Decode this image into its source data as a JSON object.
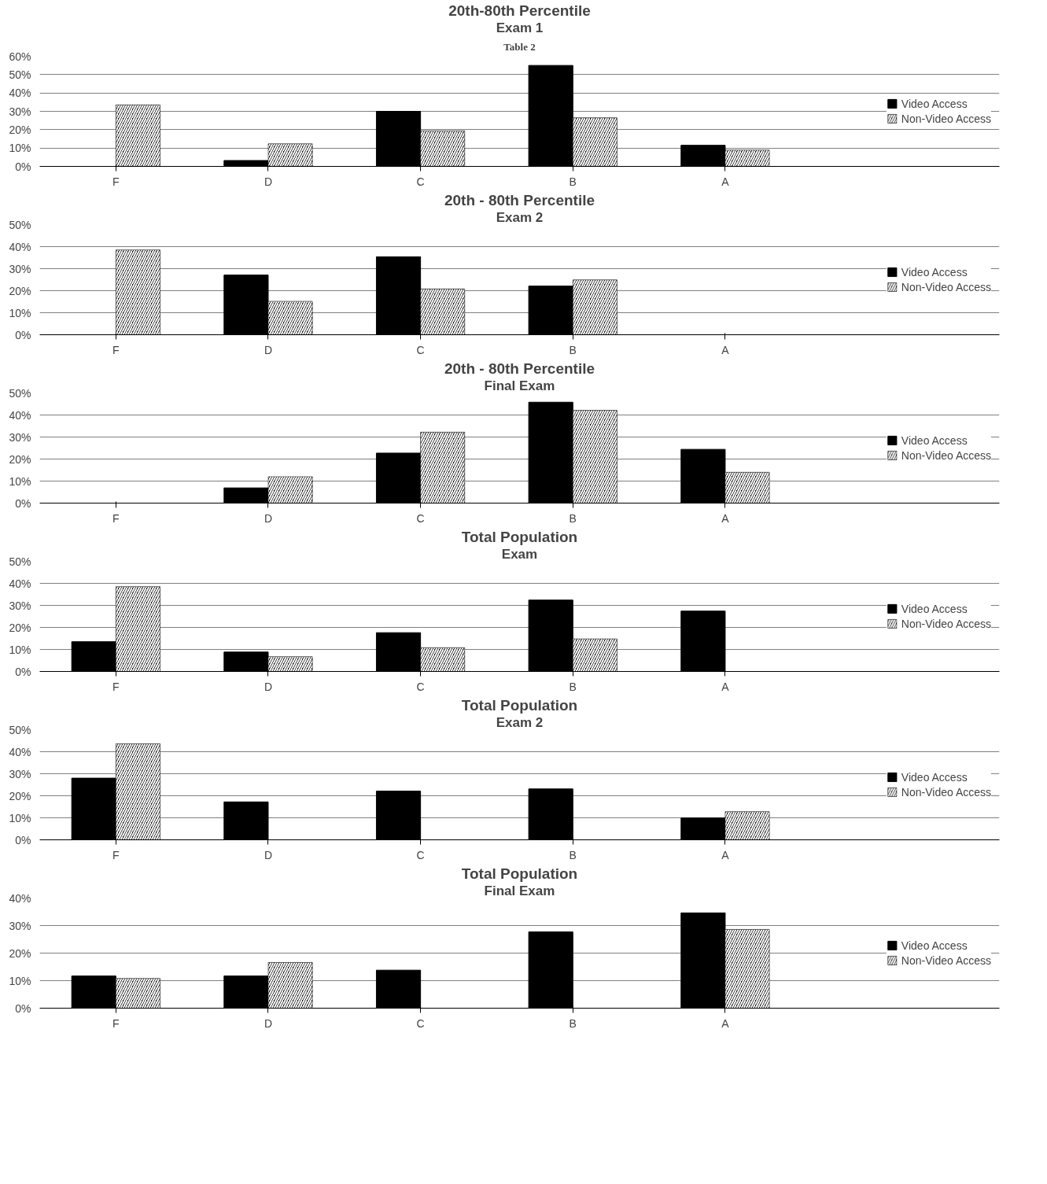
{
  "chart_data": [
    {
      "type": "bar",
      "title": "20th-80th Percentile",
      "subtitle": "Exam 1",
      "annotations": [
        "Table 2"
      ],
      "categories": [
        "F",
        "D",
        "C",
        "B",
        "A"
      ],
      "ylim": [
        0,
        60
      ],
      "yticks": [
        {
          "value": 0,
          "label": "0%"
        },
        {
          "value": 10,
          "label": "10%"
        },
        {
          "value": 20,
          "label": "20%"
        },
        {
          "value": 30,
          "label": "30%"
        },
        {
          "value": 40,
          "label": "40%"
        },
        {
          "value": 50,
          "label": "50%"
        },
        {
          "value": 60,
          "label": "60%"
        }
      ],
      "grid": "y",
      "legend": "right",
      "series": [
        {
          "name": "Video Access",
          "color": "#000000",
          "values": [
            0,
            3.2,
            30,
            55,
            11.5
          ]
        },
        {
          "name": "Non-Video Access",
          "color": "#000000",
          "values": [
            33.5,
            12.3,
            19.4,
            26.5,
            8.9
          ]
        }
      ]
    },
    {
      "type": "bar",
      "title": "20th - 80th Percentile",
      "subtitle": "Exam 2",
      "categories": [
        "F",
        "D",
        "C",
        "B",
        "A"
      ],
      "ylim": [
        0,
        50
      ],
      "yticks": [
        {
          "value": 0,
          "label": "0%"
        },
        {
          "value": 10,
          "label": "10%"
        },
        {
          "value": 20,
          "label": "20%"
        },
        {
          "value": 30,
          "label": "30%"
        },
        {
          "value": 40,
          "label": "40%"
        },
        {
          "value": 50,
          "label": "50%"
        }
      ],
      "grid": "y",
      "legend": "right",
      "series": [
        {
          "name": "Video Access",
          "color": "#000000",
          "values": [
            null,
            27.1,
            35.4,
            22.1,
            0
          ]
        },
        {
          "name": "Non-Video Access",
          "color": "#000000",
          "values": [
            38.5,
            15.2,
            20.8,
            24.9,
            0
          ]
        }
      ]
    },
    {
      "type": "bar",
      "title": "20th - 80th Percentile",
      "subtitle": "Final Exam",
      "categories": [
        "F",
        "D",
        "C",
        "B",
        "A"
      ],
      "ylim": [
        0,
        50
      ],
      "yticks": [
        {
          "value": 0,
          "label": "0%"
        },
        {
          "value": 10,
          "label": "10%"
        },
        {
          "value": 20,
          "label": "20%"
        },
        {
          "value": 30,
          "label": "30%"
        },
        {
          "value": 40,
          "label": "40%"
        },
        {
          "value": 50,
          "label": "50%"
        }
      ],
      "grid": "y",
      "legend": "right",
      "series": [
        {
          "name": "Video Access",
          "color": "#000000",
          "values": [
            0,
            6.9,
            22.7,
            45.8,
            24.4
          ]
        },
        {
          "name": "Non-Video Access",
          "color": "#000000",
          "values": [
            0,
            12.0,
            32.2,
            42.1,
            14.0
          ]
        }
      ]
    },
    {
      "type": "bar",
      "title": "Total Population",
      "subtitle": "Exam",
      "categories": [
        "F",
        "D",
        "C",
        "B",
        "A"
      ],
      "ylim": [
        0,
        50
      ],
      "yticks": [
        {
          "value": 0,
          "label": "0%"
        },
        {
          "value": 10,
          "label": "10%"
        },
        {
          "value": 20,
          "label": "20%"
        },
        {
          "value": 30,
          "label": "30%"
        },
        {
          "value": 40,
          "label": "40%"
        },
        {
          "value": 50,
          "label": "50%"
        }
      ],
      "grid": "y",
      "legend": "right",
      "series": [
        {
          "name": "Video Access",
          "color": "#000000",
          "values": [
            13.5,
            8.8,
            17.6,
            32.4,
            27.4
          ]
        },
        {
          "name": "Non-Video Access",
          "color": "#000000",
          "values": [
            38.5,
            6.7,
            10.8,
            14.8,
            null
          ]
        }
      ]
    },
    {
      "type": "bar",
      "title": "Total Population",
      "subtitle": "Exam 2",
      "categories": [
        "F",
        "D",
        "C",
        "B",
        "A"
      ],
      "ylim": [
        0,
        50
      ],
      "yticks": [
        {
          "value": 0,
          "label": "0%"
        },
        {
          "value": 10,
          "label": "10%"
        },
        {
          "value": 20,
          "label": "20%"
        },
        {
          "value": 30,
          "label": "30%"
        },
        {
          "value": 40,
          "label": "40%"
        },
        {
          "value": 50,
          "label": "50%"
        }
      ],
      "grid": "y",
      "legend": "right",
      "series": [
        {
          "name": "Video Access",
          "color": "#000000",
          "values": [
            28.0,
            17.2,
            22.1,
            23.1,
            9.9
          ]
        },
        {
          "name": "Non-Video Access",
          "color": "#000000",
          "values": [
            43.6,
            null,
            null,
            null,
            12.8
          ]
        }
      ]
    },
    {
      "type": "bar",
      "title": "Total Population",
      "subtitle": "Final Exam",
      "categories": [
        "F",
        "D",
        "C",
        "B",
        "A"
      ],
      "ylim": [
        0,
        40
      ],
      "yticks": [
        {
          "value": 0,
          "label": "0%"
        },
        {
          "value": 10,
          "label": "10%"
        },
        {
          "value": 20,
          "label": "20%"
        },
        {
          "value": 30,
          "label": "30%"
        },
        {
          "value": 40,
          "label": "40%"
        }
      ],
      "grid": "y",
      "legend": "right",
      "series": [
        {
          "name": "Video Access",
          "color": "#000000",
          "values": [
            11.7,
            11.7,
            13.8,
            27.7,
            34.6
          ]
        },
        {
          "name": "Non-Video Access",
          "color": "#000000",
          "values": [
            10.8,
            16.6,
            null,
            null,
            28.6
          ]
        }
      ]
    }
  ]
}
